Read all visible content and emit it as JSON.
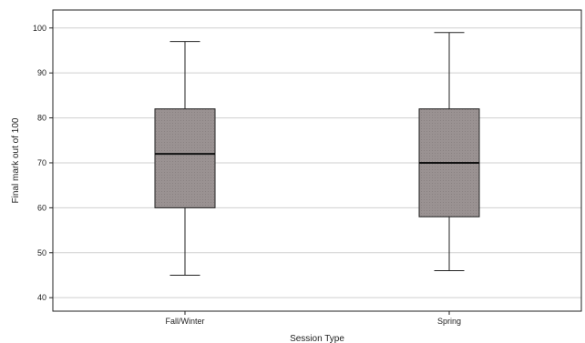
{
  "chart_data": {
    "type": "box",
    "title": "",
    "xlabel": "Session Type",
    "ylabel": "Final mark out of 100",
    "ylim": [
      37,
      104
    ],
    "yticks": [
      40,
      50,
      60,
      70,
      80,
      90,
      100
    ],
    "grid": true,
    "categories": [
      "Fall/Winter",
      "Spring"
    ],
    "boxes": [
      {
        "category": "Fall/Winter",
        "min": 45,
        "q1": 60,
        "median": 72,
        "q3": 82,
        "max": 97
      },
      {
        "category": "Spring",
        "min": 46,
        "q1": 58,
        "median": 70,
        "q3": 82,
        "max": 99
      }
    ],
    "colors": {
      "box_fill": "#9a9292",
      "stroke": "#222222",
      "grid": "#cfcfcf"
    }
  }
}
